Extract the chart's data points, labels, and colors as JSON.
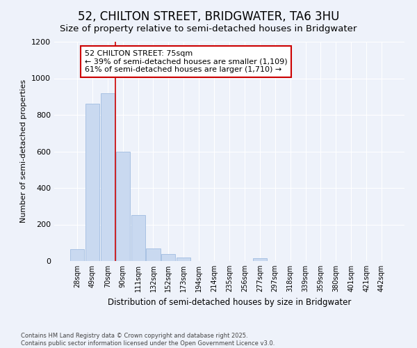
{
  "title": "52, CHILTON STREET, BRIDGWATER, TA6 3HU",
  "subtitle": "Size of property relative to semi-detached houses in Bridgwater",
  "xlabel": "Distribution of semi-detached houses by size in Bridgwater",
  "ylabel": "Number of semi-detached properties",
  "categories": [
    "28sqm",
    "49sqm",
    "70sqm",
    "90sqm",
    "111sqm",
    "132sqm",
    "152sqm",
    "173sqm",
    "194sqm",
    "214sqm",
    "235sqm",
    "256sqm",
    "277sqm",
    "297sqm",
    "318sqm",
    "339sqm",
    "359sqm",
    "380sqm",
    "401sqm",
    "421sqm",
    "442sqm"
  ],
  "values": [
    65,
    860,
    920,
    600,
    250,
    70,
    38,
    20,
    0,
    0,
    0,
    0,
    15,
    0,
    0,
    0,
    0,
    0,
    0,
    0,
    0
  ],
  "bar_color": "#c9d9f0",
  "bar_edge_color": "#a0bce0",
  "vline_color": "#cc0000",
  "vline_x_index": 2.5,
  "annotation_line1": "52 CHILTON STREET: 75sqm",
  "annotation_line2": "← 39% of semi-detached houses are smaller (1,109)",
  "annotation_line3": "61% of semi-detached houses are larger (1,710) →",
  "annotation_box_color": "#ffffff",
  "annotation_border_color": "#cc0000",
  "ylim": [
    0,
    1200
  ],
  "yticks": [
    0,
    200,
    400,
    600,
    800,
    1000,
    1200
  ],
  "footnote": "Contains HM Land Registry data © Crown copyright and database right 2025.\nContains public sector information licensed under the Open Government Licence v3.0.",
  "bg_color": "#eef2fa",
  "plot_bg_color": "#eef2fa",
  "title_fontsize": 12,
  "subtitle_fontsize": 10,
  "grid_color": "#ffffff"
}
